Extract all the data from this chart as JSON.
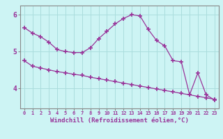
{
  "title": "",
  "xlabel": "Windchill (Refroidissement éolien,°C)",
  "ylabel": "",
  "bg_color": "#cdf4f4",
  "grid_color": "#aadddd",
  "line_color": "#993399",
  "tick_color": "#993399",
  "x": [
    0,
    1,
    2,
    3,
    4,
    5,
    6,
    7,
    8,
    9,
    10,
    11,
    12,
    13,
    14,
    15,
    16,
    17,
    18,
    19,
    20,
    21,
    22,
    23
  ],
  "curve1": [
    5.65,
    5.5,
    5.4,
    5.25,
    5.05,
    5.0,
    4.97,
    4.97,
    5.1,
    5.35,
    5.55,
    5.75,
    5.9,
    6.0,
    5.97,
    5.6,
    5.3,
    5.15,
    4.75,
    4.72,
    3.82,
    4.42,
    3.82,
    3.68
  ],
  "curve2": [
    4.75,
    4.6,
    4.55,
    4.5,
    4.45,
    4.42,
    4.38,
    4.35,
    4.3,
    4.26,
    4.22,
    4.18,
    4.14,
    4.1,
    4.06,
    4.02,
    3.98,
    3.94,
    3.9,
    3.86,
    3.82,
    3.78,
    3.74,
    3.7
  ],
  "yticks": [
    4,
    5,
    6
  ],
  "xticks": [
    0,
    1,
    2,
    3,
    4,
    5,
    6,
    7,
    8,
    9,
    10,
    11,
    12,
    13,
    14,
    15,
    16,
    17,
    18,
    19,
    20,
    21,
    22,
    23
  ],
  "ylim": [
    3.45,
    6.25
  ],
  "xlim": [
    -0.5,
    23.5
  ],
  "spine_color": "#888888",
  "xlabel_color": "#993399",
  "tick_label_color": "#993399"
}
